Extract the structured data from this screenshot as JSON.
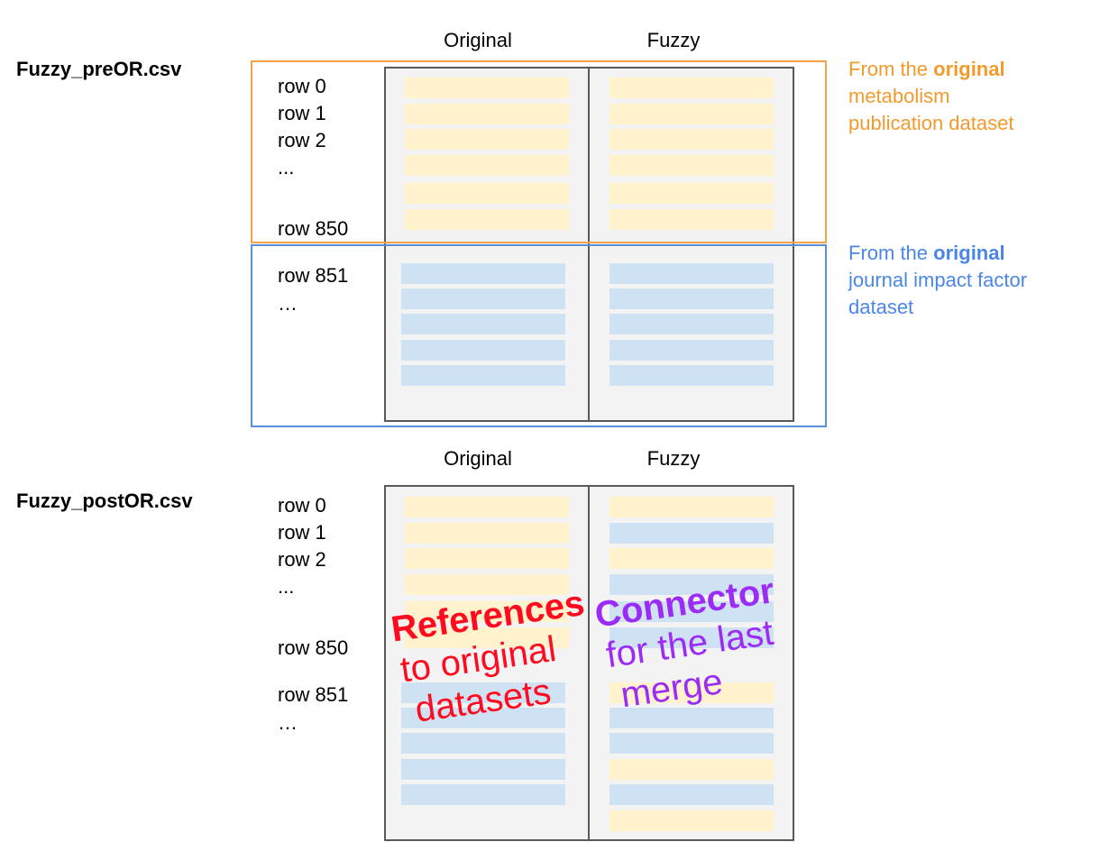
{
  "top": {
    "file_name": "Fuzzy_preOR.csv",
    "col_original": "Original",
    "col_fuzzy": "Fuzzy",
    "rows_a": [
      "row 0",
      "row 1",
      "row 2",
      "..."
    ],
    "row_850": "row 850",
    "row_851": "row 851",
    "ellipsis_b": "…",
    "note_orange": {
      "prefix": "From the ",
      "bold": "original",
      "line2": "metabolism",
      "line3": "publication dataset"
    },
    "note_blue": {
      "prefix": "From the ",
      "bold": "original",
      "line2": "journal impact factor",
      "line3": "dataset"
    }
  },
  "bottom": {
    "file_name": "Fuzzy_postOR.csv",
    "col_original": "Original",
    "col_fuzzy": "Fuzzy",
    "rows_a": [
      "row 0",
      "row 1",
      "row 2",
      "..."
    ],
    "row_850": "row 850",
    "row_851": "row 851",
    "ellipsis_b": "…",
    "fuzzy_strip_sources": [
      "original",
      "journal",
      "original",
      "journal",
      "journal",
      "journal",
      "original",
      "journal",
      "journal",
      "original",
      "journal",
      "original"
    ],
    "annotation_red": {
      "bold": "References",
      "line2": "to original",
      "line3": "datasets"
    },
    "annotation_purple": {
      "bold": "Connector",
      "line2": "for the last",
      "line3": "merge"
    }
  },
  "colors": {
    "original_fill": "#fff2cc",
    "journal_fill": "#cfe2f3",
    "orange_outline": "#f6a24a",
    "blue_outline": "#5b8ed8",
    "annotation_red": "#ff0a1e",
    "annotation_purple": "#9b2bf5"
  }
}
